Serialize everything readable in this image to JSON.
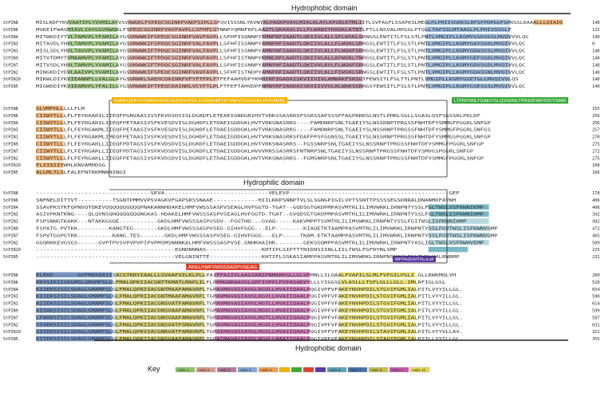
{
  "colors": {
    "helix1": "#8fc46a",
    "helix2": "#d99a8c",
    "helix3": "#b57a9a",
    "helix4": "#7fa6d6",
    "helix5": "#f0a050",
    "helix6": "#5aa6b8",
    "helix7": "#4a72b0",
    "helix8": "#c8c04a",
    "helix9": "#c858a8",
    "helix10": "#e6d84a",
    "motif_yellow": "#f0b400",
    "motif_green": "#3aa83a",
    "motif_red": "#e0402a",
    "motif_purple": "#5a36a8"
  },
  "domains": {
    "top": "Hydrophobic domain",
    "middle": "Hydrophilic domain",
    "bottom": "Hydrophobic domain"
  },
  "motifs": {
    "block2_yellow": "ILWEQFP-DTAAIIVSFKVEDSVIYDLDGRENPTDTAEVDGDGKLHVVRHS",
    "block2_green": "LTPRPSNLTGAEIYSLQSSRNLTPRSSFMHTDFYSMM",
    "block3_red": "AKELHMFVWSSSASPVSEAG",
    "block3_purple": "MPPASVMTRLILM"
  },
  "key": {
    "title": "Key",
    "labels": [
      "Helix 1",
      "Helix 2",
      "Helix 3",
      "Helix 4",
      "Helix 5",
      "",
      "",
      "",
      "",
      "Helix 6",
      "Helix 7",
      "Helix 8",
      "Helix 9",
      "Helix 10"
    ]
  },
  "blocks": [
    {
      "rows": [
        {
          "name": "StPIN8",
          "seq": "MISLRDFYRVVAATIPLYVVMILAYVSVRWGKLFSPEQCSGINKFVAKFSIPLLSFQVISSSNLYKVNYALPAGKPVAVLMIALALAYLKPGKLKTMLIITLSVFAGFLSSAFKSLMEGLPLPHIIVGKKSLRFSFPDPGGFSPRSSLDAAALLLQIAIQ",
          "num": "140"
        },
        {
          "name": "StPIN6",
          "seq": "MVKEIFWASMIAVLIAYGSVRWGKLFSPEQCSGINRFVAVFAVPLLSFHFLSTNNPYQMNFRFLAADTLQKAAVLILLFLWANITKRGKLKTNTLFTLLNSVALHPGGLPTQLLTAFSSLMTAAGLPLPHIVSVGLF",
          "num": "125"
        },
        {
          "name": "StPIN4",
          "seq": "MITWKDIYTVLTAMVPLYFAMILAYGSVRWWKIFSPEQCSGINRFVAVFAVPLLSFHFISQNNPYEMNFRFIAADTLQKIIVLALLSFLWSKLSRNGSLEWTITLFSLSTLPNTLVMGIPLLKGMYGSDSGSLMVQVVVLQC",
          "num": "140"
        },
        {
          "name": "StPIN3",
          "seq": "MITAVDLYHVLTAMVPLYVAMILAYGSVRWWKIFSPDQCSGINRFVALFAVPLLSFHFISSNNPYAMNFRFIAADTLQKIIVLALLFLWSKLSRRGSLEWTITLFSLSTLPNTLVMGIPLLKGMYGAYSGDLMVQIVVLQC",
          "num": "0"
        },
        {
          "name": "StPIN1",
          "seq": "MISLSDLYHVLTAVVPLYVAMILAYGSVRWWKIFTPDQCSGINRFVALFAVPLLSFHFISSNNPYAMNYHFIAADSLQKIIVLALLFLWQAFSRRGSLEWTITLFSLSTLPNTLVMGIPLLKGMYGDASGSLMVQIVVLQC",
          "num": "140"
        },
        {
          "name": "StPIN9",
          "seq": "MITVTDMYTVMAAMVPLYFAMILAYGSVKWWKIFTPDQCSGINRFVAVFAVPLLSFHFISTNNPYKMNLRFLAADTLQKIIVLALLAFWSKLTNRGSLEWTITLFSLSTLPNTLVMGIPLLKGMYGEFSGDLMVQIVVLQC",
          "num": "140"
        },
        {
          "name": "StPIN7",
          "seq": "MITVSDLYHVLTAMVPLYVAMILAYGSVKWWKIFTPDQCSGINRFVALFAVPLLSFHFISSNNPYAMNYHFIAADTLQKIVVLAVLFLWQAFSRRGSLEWTITLFSLSTLPNTLVMGIPLLKGMYGDVSGDLMVQIVVLQC",
          "num": "140"
        },
        {
          "name": "StPIN2",
          "seq": "MINGKDIYDVLAAIVPLYVAMILAYGSVRWWKIFSPEQCSGINRFVAVFAVPLLSFHFISTNDPYAMNFRFIAADTLQKIIVLALLFIWSKLSRNGSLEWTITLFSLSTLPNTLVMGIPLLKGMYGDASGNLMVQIVVLQC",
          "num": "140"
        },
        {
          "name": "StPIN10",
          "seq": "MIKWLDIYKVIEANNFLLVALGLAYGSVRWKLSAEHCDAINRFVFYFTFPLFTFEFAAHVDPYKMNYRFIGADAISKVIIVIVLAMWAKFSRSGTFEWSITLFSLTTLPNTLVMGIPLLKGMYGGETGLLMVQIVVLQS",
          "num": "140"
        },
        {
          "name": "StPIN5",
          "seq": "MIGWDDIYKVIEAMVPLYFALILGYGSVRWWKIFTPEQCDAINRLVCYFTLPLFTFEFTAHVDPFNMNYRFIAADAISKVIIVVVLALWAKSSRRGSYEWSITLFSLSTLPNTLVMGIPLLKGMYGSESGSLMVQIVVLQC",
          "num": "140"
        }
      ]
    },
    {
      "rows": [
        {
          "name": "StPIN8",
          "seq": "SLVMFHLLLLLFLM",
          "num": "155"
        },
        {
          "name": "StPIN6",
          "seq": "CIIWYTLLLFLFEYRAARILIIEQFPGNVAASIVSFKVDSDVISLDGRDFLETEAEIGNDGRIHVTVRKSSASRRSFSSRSSAPSSSFFAGPRRRSLNSTLPHRLSGLLSGASLQSFSGSSRLPDLDF",
          "num": "256"
        },
        {
          "name": "StPIN4",
          "seq": "CIIWYTLLLFLFEYRGARILIIEQFPETAASIVSFKVESDVISLDGHDFLETDAEIGDDGKLHVTVRKSNASRRS----FAMDNRPSNLTGAEIYSLNSSRNPTPRGSSFNHTDFYSMMGFPGGRLSNFGP",
          "num": "256"
        },
        {
          "name": "StPIN3",
          "seq": "CIIWYTLLLFLFEYRGAKMLIIEQFPETAASIVSFKVESDVISLDGHDFLETDAEIGDDGKLHVTVRKSNASRRS----FAMDNRPSNLTGAEIYSLNSSRNPTPRGSSFNHTDFYSMMGFPGGRLSNFGS",
          "num": "257"
        },
        {
          "name": "StPIN1",
          "seq": "CIIWYTLLLFLFEYRGAKMLIMEQFPETAASIVSFKVESDVISLDGHDFLETDAEIGDDGKLHVTVRKSNASRRSFDAFPPSFGGNSSLTGAEIYSLNSSRNPTPRGSSFNHTDFYSMMGSPGGRLSNFGP",
          "num": "270"
        },
        {
          "name": "StPIN9",
          "seq": "CIIWYTLLLFLFEYRGARLLIIEQFPDTAGSIVSFKVDSDVISLDGRDFLETDAEIGDDGKLHVTVRKSNASRRS--FGSSNRPSNLTGAEIYSLNSSRNPTPRGSSFNHTDFYSMMGFPGGRLSNFGP",
          "num": "275"
        },
        {
          "name": "StPIN7",
          "seq": "CIIWYTLLLFLFEYRGARLLIIEQFPDTAGSIVSFKVDSDVISLDGRDFLETDAEIGDDGKLHVVVRRSSASRRSFNTNRPSNLTGAEIYSLNSSRNPTPRGSSFNHTDFYSMVGSPGGRLSNFGP",
          "num": "272"
        },
        {
          "name": "StPIN2",
          "seq": "CIIWYTLLLFLFEYRGAKLLIIEQFPETAGSIVSFKVDSDVISLDGRDFLETDAEIGDDGKLHVTVRKSNASRRS--FGMSNRPSNLTGAEIYSLNSSRNPTPRGSSFNHTDFYSMMGFPGGRLSNFGP",
          "num": "275"
        },
        {
          "name": "StPIN10",
          "seq": "FLIISIIYWHLKNVAMHDSG",
          "num": "160"
        },
        {
          "name": "StPIN5",
          "seq": "ALLMLTLSLFALEFNTRKMNNNINGI",
          "num": "166"
        }
      ]
    },
    {
      "rows": [
        {
          "name": "StPIN8",
          "seq": "---------------------------------SEVA------------------------------VELEVP----------------------------------------------GEF",
          "num": "178"
        },
        {
          "name": "StPIN6",
          "seq": "SNFNELDITTVT----------TSGNTPMMVVPSVAGKVFGAPSRSSNAAE-------------HIILRRPSNNPTVLSLSGNGPIGILVPTSSNTTPSSSSEGSDNRALDNANMDFAVNH",
          "num": "406"
        },
        {
          "name": "StPIN4",
          "seq": "SSAVPKSTKFQPNVQTQKEVQQQQQQQQQQPNAKANNHDAKELHMFVWSSSASPVSEAGLHVFGGTD-TGAT--GQDSGTGKDPMPASVMTRLILIMVWRKLIRNPNTYSSLFGLTWSLVSFRWNIKMP",
          "num": "406"
        },
        {
          "name": "StPIN3",
          "seq": "ASIVPKNTKNQ----QLQVNSQHQQQQQQQNGKAS-HDAKELHMFVWSSSASPVSEAGLHVFGGTD-TGAT--GVQDSGTGKDPMPASVMTRLILIMVWRKLIRNPNTYSSLFGLTWSLISFKWNIHMP",
          "num": "342"
        },
        {
          "name": "StPIN1",
          "seq": "FSPSNNGTKAKK---NTAKKGGQE-----------GKDLHMFVWSSSASPVSDV--FGGTHD---GVAQ-----KAKVMPPTSVMTRLILIMVWRKLIRNPNTYSSLFGITWSLISFKWNIHMP",
          "num": "492"
        },
        {
          "name": "StPIN9",
          "seq": "FSPATG.PVTKK---------KANGTEG-------GKDLHMFVWSSSASPVSEG-GIHVFGGG---ELP--------KIAQETKTAAMPPASVMTRLILIMVWRKLIRNPNTYSSLFGVTWSLISFKWNVQMP",
          "num": "472"
        },
        {
          "name": "StPIN7",
          "seq": "FSPVTGGPGTKK----------KANG.TES-------GKDLHMFVWSSSASPVSEG-GIHVFGGG---ELP-----TKAM.ETKTAAMPPASVMTRLILIMVWRKLIRNPNTYSSLFGVTWSLISFKWNVQMP",
          "num": "465"
        },
        {
          "name": "StPIN2",
          "seq": "GGQRKKEVGSGS------GVPTPVSVPVPVPIPVPMSMSNNNKALHMFVWSSSASPVSE.GNHKHAIHR--------GEKSGQMPPASVMTRLILIMVWRKLIRNPNTYASLIGLTWSLVSFRWHVEMP",
          "num": "509"
        },
        {
          "name": "StPIN10",
          "seq": "----------------------------------------EGNDNNNAS----------------KHTIPLSIPTTTNIDNSIINLLIILTWSLFGFRYNLSMP",
          "num": "225"
        },
        {
          "name": "StPIN5",
          "seq": "----------------------------------------VELGNINTTE---------------KHTIFLSSKASIAMPPASVMTRLILIMVWRKLIRNPNSYACLFGLTWSLVALRWRMP",
          "num": "231"
        }
      ]
    },
    {
      "rows": [
        {
          "name": "StPIN8",
          "seq": "ELEKD-------GVFMASQAIIIACGTKRYIAALLLSVAAFVILKLPLLPAIFFAIIVLAAGIANIPNMARKSLLGLVPHNLLILQAALFVAPILSLMLFVFGILPGLI.GLLRWKMQLVH",
          "num": "260"
        },
        {
          "name": "StPIN6",
          "seq": "PKYSIKIISKGMSLGMSMFSLGLFMALQPKIIACGNTTKMATLMAPLILFLPPMGNRAAVGLGRFIVPPLPVPASAKVYLLLYIGGSLVLASLLLTSFLGLLLGLL.IMLRFIGLGSL",
          "num": "528"
        },
        {
          "name": "StPIN4",
          "seq": "KIIEKSISILSDAGLGMAMFSLGLFMALQPRIIACGNTMAAFAMAVRFLTGPAVMAVASIAVGLRGVLLHVAIIQAALPQGIVPFVFAKEYNVHPDILSTGVIFGMLIALPITLVYYILLGL.",
          "num": "654"
        },
        {
          "name": "StPIN3",
          "seq": "KIIEKSISILSDAGLGMAMFSLGLFMALQPRIIACGNTMAAFAMAVRFLTGPAVMAVASIAVGLRGVLLHVAIIQAALPQGIVPFVFAKEYNVHPDILSTGVIFGMLIALPITLVYYILLGL.",
          "num": "590"
        },
        {
          "name": "StPIN1",
          "seq": "AIIEKSISILSDAGLGMAMFSLGLFMALQPKIIACGNSVATFAMAVRFLTGPAVMAVASIAVGLRGTLLHVAIIQAALPQGIVPFVFAKEYNVHPDILSTGVIFGMLIALPITLVYYILLGL.",
          "num": "614"
        },
        {
          "name": "StPIN9",
          "seq": "AIIAKSISILSDAGLGMAMFSLGLFMALQPRIIACGNSVAAFAMAVRFLTGPAVMAVASIAVGLRGVLLHVAIIQAALPQGIVPFVFAKEYNVHPDILSTGVIFGMLIALPITLVYYILLGL.",
          "num": "599"
        },
        {
          "name": "StPIN7",
          "seq": "LFAKKSISILSDAGLGMAMFSLGLFMALQPKIIACGNSVAAFAMAVRFLTGPAVMAVASIAVGLRGTLLHVAIIQAALPQGIVPFVFAKEYNVHPDILSTGVIFGMLIALPITLVYYILLGL.",
          "num": "587"
        },
        {
          "name": "StPIN2",
          "seq": "SIVEKSISILSDAGLGMAMFSLGLFMALQPKIIACGNSVATFSMAVRFLTGPAVMAVASIAVGLRGVLLHVAIIQAALPQGIVPFVFAKEYNVHPDILSTGVIFGMLIALPITLVYYILLGL.",
          "num": "631"
        },
        {
          "name": "StPIN10",
          "seq": "SIIEKSISILSDAGLGMAMFSLGLFMALQPKVIACGNKVATFAMAVRFLTGPAIMAVASIAVGLRGVLLHVAIIQAALPQGIVPFVFAKEYNVHPDILSTAVIFGMLIALPITLVYYVLLAV.",
          "num": "321"
        },
        {
          "name": "StPIN5",
          "seq": "SIIEKSISILSDAGLGMAMFSLGLFMALQPKIIACGNSVAAFAMAVRFLTGPAIMAVASIAVGLRGVLLHAAIIQAALPQGIVPFVFAKEYNVHPDILSTAVIFGMLIALPITLLYYILLGL.",
          "num": "355"
        }
      ]
    }
  ]
}
